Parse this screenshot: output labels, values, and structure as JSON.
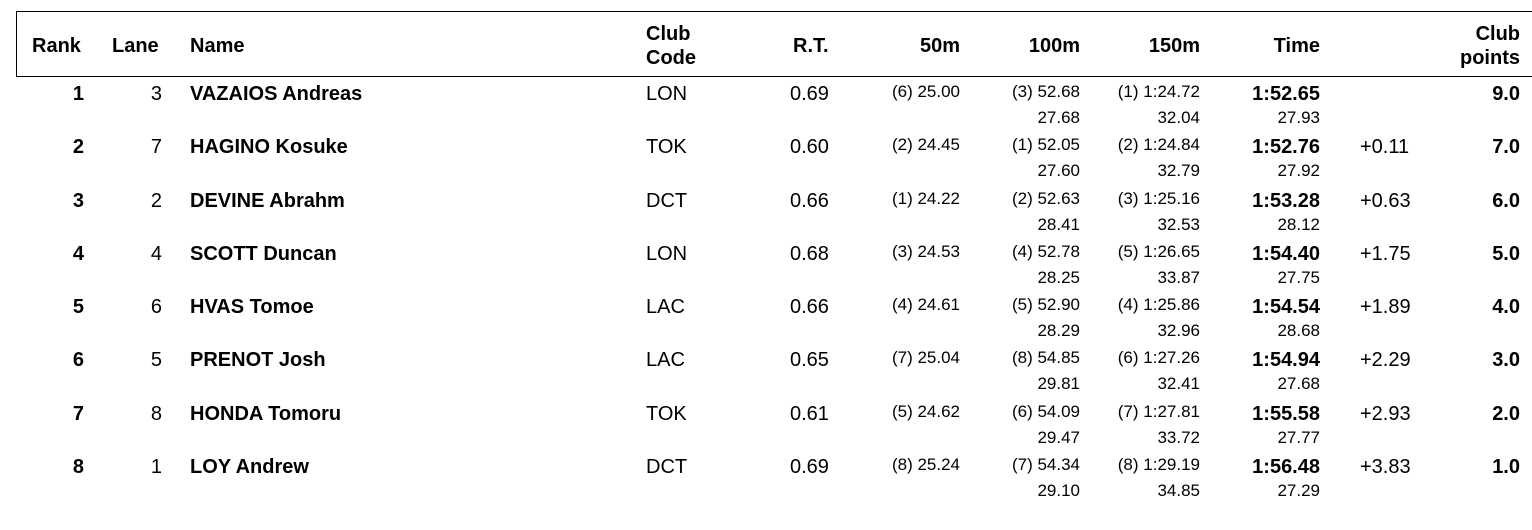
{
  "headers": {
    "rank": "Rank",
    "lane": "Lane",
    "name": "Name",
    "club_code_1": "Club",
    "club_code_2": "Code",
    "rt": "R.T.",
    "s50": "50m",
    "s100": "100m",
    "s150": "150m",
    "time": "Time",
    "club_points_1": "Club",
    "club_points_2": "points"
  },
  "rows": [
    {
      "rank": "1",
      "lane": "3",
      "name": "VAZAIOS Andreas",
      "club": "LON",
      "rt": "0.69",
      "s50": "(6) 25.00",
      "s100": "(3) 52.68",
      "s100_split": "27.68",
      "s150": "(1) 1:24.72",
      "s150_split": "32.04",
      "time": "1:52.65",
      "time_split": "27.93",
      "behind": "",
      "points": "9.0"
    },
    {
      "rank": "2",
      "lane": "7",
      "name": "HAGINO Kosuke",
      "club": "TOK",
      "rt": "0.60",
      "s50": "(2) 24.45",
      "s100": "(1) 52.05",
      "s100_split": "27.60",
      "s150": "(2) 1:24.84",
      "s150_split": "32.79",
      "time": "1:52.76",
      "time_split": "27.92",
      "behind": "+0.11",
      "points": "7.0"
    },
    {
      "rank": "3",
      "lane": "2",
      "name": "DEVINE Abrahm",
      "club": "DCT",
      "rt": "0.66",
      "s50": "(1) 24.22",
      "s100": "(2) 52.63",
      "s100_split": "28.41",
      "s150": "(3) 1:25.16",
      "s150_split": "32.53",
      "time": "1:53.28",
      "time_split": "28.12",
      "behind": "+0.63",
      "points": "6.0"
    },
    {
      "rank": "4",
      "lane": "4",
      "name": "SCOTT Duncan",
      "club": "LON",
      "rt": "0.68",
      "s50": "(3) 24.53",
      "s100": "(4) 52.78",
      "s100_split": "28.25",
      "s150": "(5) 1:26.65",
      "s150_split": "33.87",
      "time": "1:54.40",
      "time_split": "27.75",
      "behind": "+1.75",
      "points": "5.0"
    },
    {
      "rank": "5",
      "lane": "6",
      "name": "HVAS Tomoe",
      "club": "LAC",
      "rt": "0.66",
      "s50": "(4) 24.61",
      "s100": "(5) 52.90",
      "s100_split": "28.29",
      "s150": "(4) 1:25.86",
      "s150_split": "32.96",
      "time": "1:54.54",
      "time_split": "28.68",
      "behind": "+1.89",
      "points": "4.0"
    },
    {
      "rank": "6",
      "lane": "5",
      "name": "PRENOT Josh",
      "club": "LAC",
      "rt": "0.65",
      "s50": "(7) 25.04",
      "s100": "(8) 54.85",
      "s100_split": "29.81",
      "s150": "(6) 1:27.26",
      "s150_split": "32.41",
      "time": "1:54.94",
      "time_split": "27.68",
      "behind": "+2.29",
      "points": "3.0"
    },
    {
      "rank": "7",
      "lane": "8",
      "name": "HONDA Tomoru",
      "club": "TOK",
      "rt": "0.61",
      "s50": "(5) 24.62",
      "s100": "(6) 54.09",
      "s100_split": "29.47",
      "s150": "(7) 1:27.81",
      "s150_split": "33.72",
      "time": "1:55.58",
      "time_split": "27.77",
      "behind": "+2.93",
      "points": "2.0"
    },
    {
      "rank": "8",
      "lane": "1",
      "name": "LOY Andrew",
      "club": "DCT",
      "rt": "0.69",
      "s50": "(8) 25.24",
      "s100": "(7) 54.34",
      "s100_split": "29.10",
      "s150": "(8) 1:29.19",
      "s150_split": "34.85",
      "time": "1:56.48",
      "time_split": "27.29",
      "behind": "+3.83",
      "points": "1.0"
    }
  ]
}
